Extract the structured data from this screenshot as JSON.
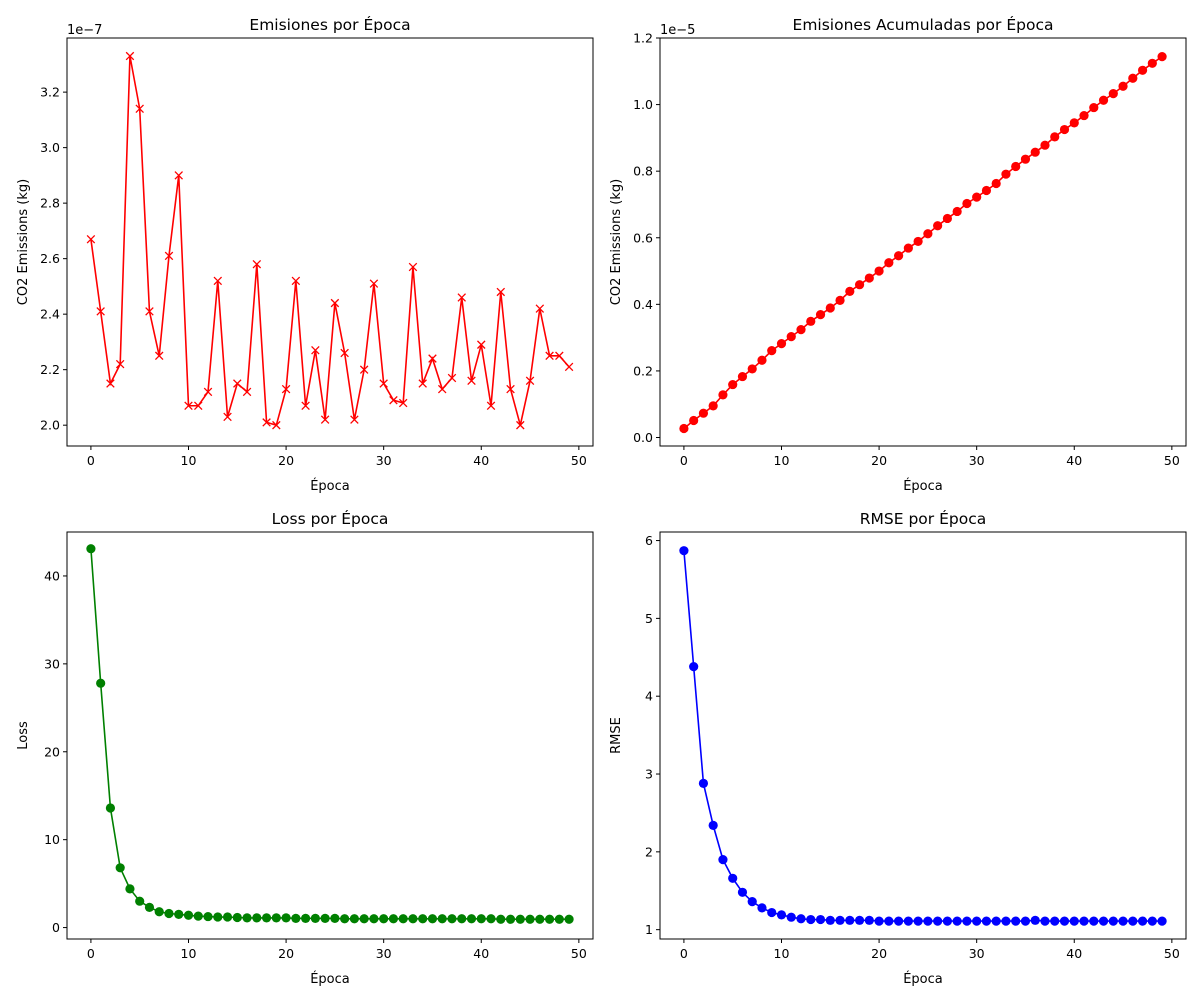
{
  "chart_data": [
    {
      "type": "line",
      "title": "Emisiones por Época",
      "xlabel": "Época",
      "ylabel": "CO2 Emissions (kg)",
      "offset_label": "1e−7",
      "xlim": [
        -2.45,
        51.45
      ],
      "ylim": [
        1.925,
        3.395
      ],
      "xticks": [
        0,
        10,
        20,
        30,
        40,
        50
      ],
      "xtick_labels": [
        "0",
        "10",
        "20",
        "30",
        "40",
        "50"
      ],
      "yticks": [
        2.0,
        2.2,
        2.4,
        2.6,
        2.8,
        3.0,
        3.2
      ],
      "ytick_labels": [
        "2.0",
        "2.2",
        "2.4",
        "2.6",
        "2.8",
        "3.0",
        "3.2"
      ],
      "marker": "x",
      "color": "#ff0000",
      "x": [
        0,
        1,
        2,
        3,
        4,
        5,
        6,
        7,
        8,
        9,
        10,
        11,
        12,
        13,
        14,
        15,
        16,
        17,
        18,
        19,
        20,
        21,
        22,
        23,
        24,
        25,
        26,
        27,
        28,
        29,
        30,
        31,
        32,
        33,
        34,
        35,
        36,
        37,
        38,
        39,
        40,
        41,
        42,
        43,
        44,
        45,
        46,
        47,
        48,
        49
      ],
      "values": [
        2.67,
        2.41,
        2.15,
        2.22,
        3.33,
        3.14,
        2.41,
        2.25,
        2.61,
        2.9,
        2.07,
        2.07,
        2.12,
        2.52,
        2.03,
        2.15,
        2.12,
        2.58,
        2.01,
        2.0,
        2.13,
        2.52,
        2.07,
        2.27,
        2.02,
        2.44,
        2.26,
        2.02,
        2.2,
        2.51,
        2.15,
        2.09,
        2.08,
        2.57,
        2.15,
        2.24,
        2.13,
        2.17,
        2.46,
        2.16,
        2.29,
        2.07,
        2.48,
        2.13,
        2.0,
        2.16,
        2.42,
        2.25,
        2.25,
        2.21
      ]
    },
    {
      "type": "line",
      "title": "Emisiones Acumuladas por Época",
      "xlabel": "Época",
      "ylabel": "CO2 Emissions (kg)",
      "offset_label": "1e−5",
      "xlim": [
        -2.45,
        51.45
      ],
      "ylim": [
        -0.0255,
        1.2
      ],
      "xticks": [
        0,
        10,
        20,
        30,
        40,
        50
      ],
      "xtick_labels": [
        "0",
        "10",
        "20",
        "30",
        "40",
        "50"
      ],
      "yticks": [
        0.0,
        0.2,
        0.4,
        0.6,
        0.8,
        1.0,
        1.2
      ],
      "ytick_labels": [
        "0.0",
        "0.2",
        "0.4",
        "0.6",
        "0.8",
        "1.0",
        "1.2"
      ],
      "marker": "o",
      "color": "#ff0000",
      "x": [
        0,
        1,
        2,
        3,
        4,
        5,
        6,
        7,
        8,
        9,
        10,
        11,
        12,
        13,
        14,
        15,
        16,
        17,
        18,
        19,
        20,
        21,
        22,
        23,
        24,
        25,
        26,
        27,
        28,
        29,
        30,
        31,
        32,
        33,
        34,
        35,
        36,
        37,
        38,
        39,
        40,
        41,
        42,
        43,
        44,
        45,
        46,
        47,
        48,
        49
      ],
      "values": [
        0.027,
        0.051,
        0.073,
        0.095,
        0.128,
        0.159,
        0.183,
        0.206,
        0.232,
        0.261,
        0.282,
        0.303,
        0.324,
        0.349,
        0.369,
        0.389,
        0.412,
        0.439,
        0.459,
        0.479,
        0.5,
        0.525,
        0.546,
        0.569,
        0.589,
        0.612,
        0.636,
        0.658,
        0.679,
        0.703,
        0.722,
        0.742,
        0.763,
        0.791,
        0.814,
        0.836,
        0.857,
        0.878,
        0.903,
        0.925,
        0.945,
        0.967,
        0.991,
        1.013,
        1.033,
        1.055,
        1.079,
        1.103,
        1.124,
        1.144
      ]
    },
    {
      "type": "line",
      "title": "Loss por Época",
      "xlabel": "Época",
      "ylabel": "Loss",
      "offset_label": "",
      "xlim": [
        -2.45,
        51.45
      ],
      "ylim": [
        -1.3,
        45.0
      ],
      "xticks": [
        0,
        10,
        20,
        30,
        40,
        50
      ],
      "xtick_labels": [
        "0",
        "10",
        "20",
        "30",
        "40",
        "50"
      ],
      "yticks": [
        0,
        10,
        20,
        30,
        40
      ],
      "ytick_labels": [
        "0",
        "10",
        "20",
        "30",
        "40"
      ],
      "marker": "o",
      "color": "#008000",
      "x": [
        0,
        1,
        2,
        3,
        4,
        5,
        6,
        7,
        8,
        9,
        10,
        11,
        12,
        13,
        14,
        15,
        16,
        17,
        18,
        19,
        20,
        21,
        22,
        23,
        24,
        25,
        26,
        27,
        28,
        29,
        30,
        31,
        32,
        33,
        34,
        35,
        36,
        37,
        38,
        39,
        40,
        41,
        42,
        43,
        44,
        45,
        46,
        47,
        48,
        49
      ],
      "values": [
        43.1,
        27.8,
        13.6,
        6.8,
        4.4,
        3.0,
        2.3,
        1.8,
        1.6,
        1.5,
        1.4,
        1.3,
        1.25,
        1.2,
        1.2,
        1.15,
        1.1,
        1.1,
        1.1,
        1.1,
        1.1,
        1.05,
        1.05,
        1.05,
        1.05,
        1.05,
        1.0,
        1.0,
        1.0,
        1.0,
        1.0,
        1.0,
        1.0,
        1.0,
        1.0,
        1.0,
        1.0,
        1.0,
        1.0,
        1.0,
        1.0,
        1.0,
        0.95,
        0.95,
        0.95,
        0.95,
        0.95,
        0.95,
        0.95,
        0.95
      ]
    },
    {
      "type": "line",
      "title": "RMSE por Época",
      "xlabel": "Época",
      "ylabel": "RMSE",
      "offset_label": "",
      "xlim": [
        -2.45,
        51.45
      ],
      "ylim": [
        0.88,
        6.11
      ],
      "xticks": [
        0,
        10,
        20,
        30,
        40,
        50
      ],
      "xtick_labels": [
        "0",
        "10",
        "20",
        "30",
        "40",
        "50"
      ],
      "yticks": [
        1,
        2,
        3,
        4,
        5,
        6
      ],
      "ytick_labels": [
        "1",
        "2",
        "3",
        "4",
        "5",
        "6"
      ],
      "marker": "o",
      "color": "#0000ff",
      "x": [
        0,
        1,
        2,
        3,
        4,
        5,
        6,
        7,
        8,
        9,
        10,
        11,
        12,
        13,
        14,
        15,
        16,
        17,
        18,
        19,
        20,
        21,
        22,
        23,
        24,
        25,
        26,
        27,
        28,
        29,
        30,
        31,
        32,
        33,
        34,
        35,
        36,
        37,
        38,
        39,
        40,
        41,
        42,
        43,
        44,
        45,
        46,
        47,
        48,
        49
      ],
      "values": [
        5.87,
        4.38,
        2.88,
        2.34,
        1.9,
        1.66,
        1.48,
        1.36,
        1.28,
        1.22,
        1.19,
        1.16,
        1.14,
        1.13,
        1.13,
        1.12,
        1.12,
        1.12,
        1.12,
        1.12,
        1.11,
        1.11,
        1.11,
        1.11,
        1.11,
        1.11,
        1.11,
        1.11,
        1.11,
        1.11,
        1.11,
        1.11,
        1.11,
        1.11,
        1.11,
        1.11,
        1.12,
        1.11,
        1.11,
        1.11,
        1.11,
        1.11,
        1.11,
        1.11,
        1.11,
        1.11,
        1.11,
        1.11,
        1.11,
        1.11
      ]
    }
  ]
}
